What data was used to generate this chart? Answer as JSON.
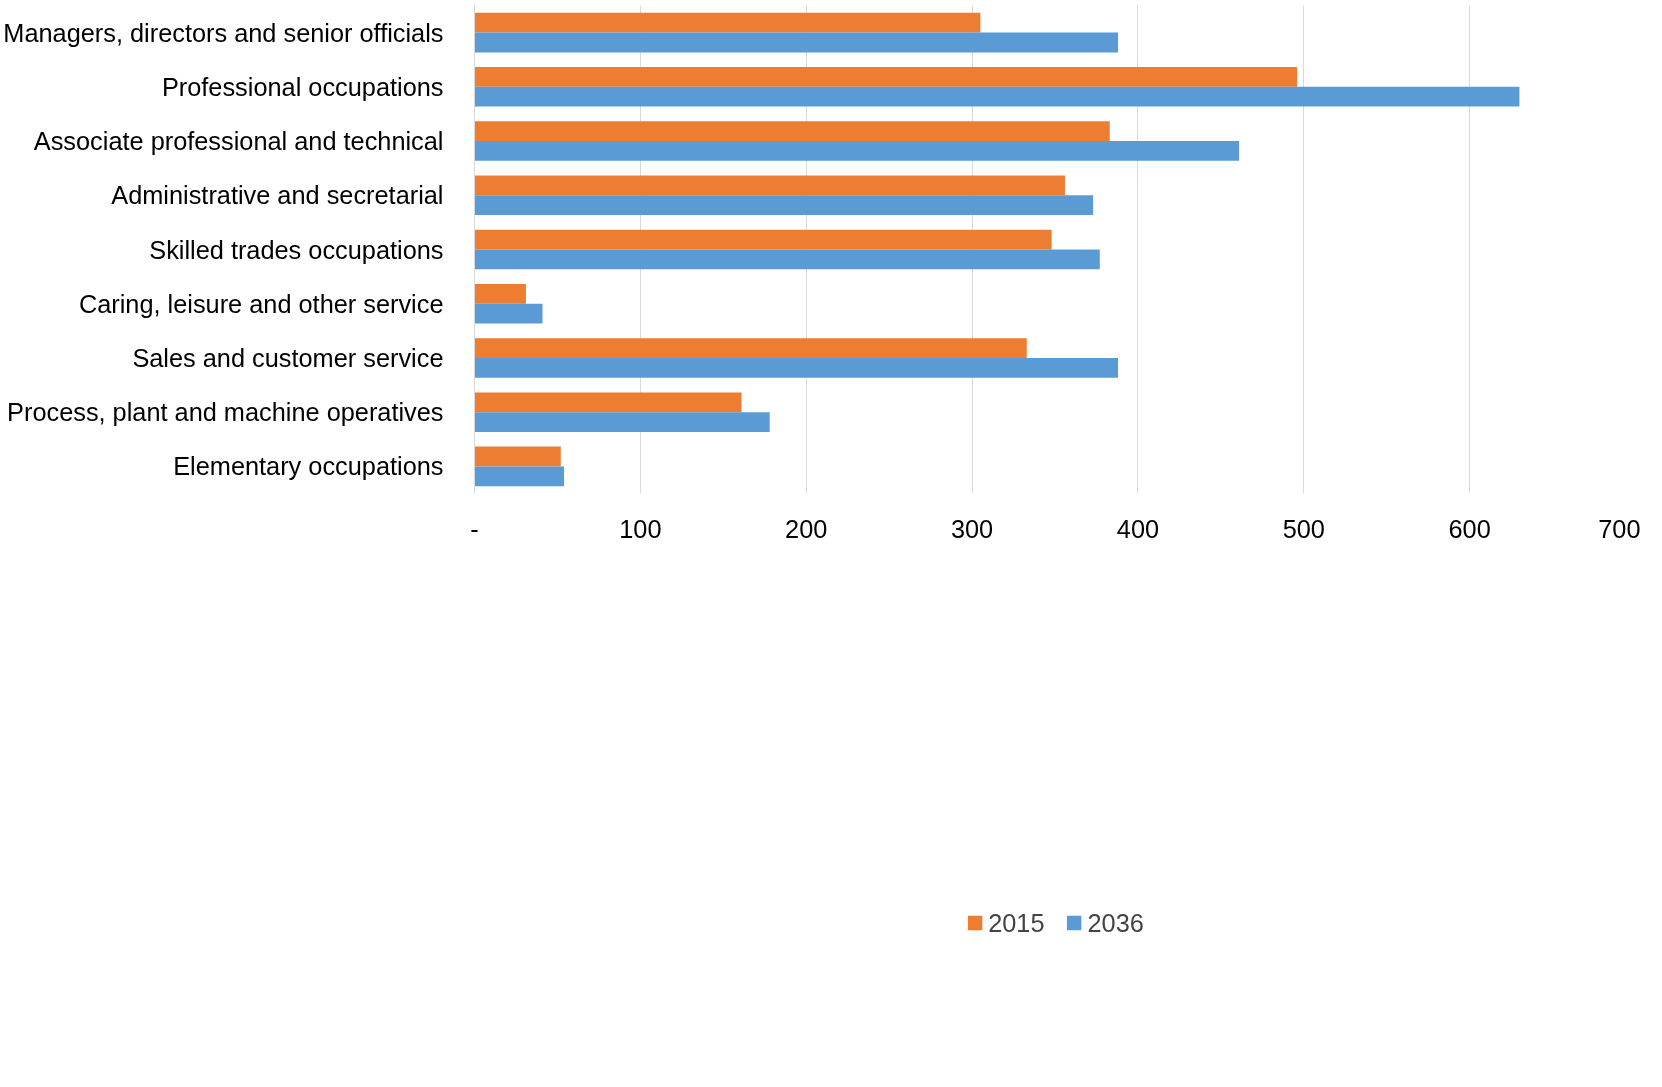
{
  "chart_data": {
    "type": "bar",
    "orientation": "horizontal",
    "categories": [
      "Managers, directors and senior officials",
      "Professional occupations",
      "Associate professional and technical",
      "Administrative and secretarial",
      "Skilled trades occupations",
      "Caring, leisure and other service",
      "Sales and customer service",
      "Process, plant and machine operatives",
      "Elementary occupations"
    ],
    "series": [
      {
        "name": "2015",
        "color": "#ed7d31",
        "values": [
          305,
          496,
          383,
          356,
          348,
          31,
          333,
          161,
          52
        ]
      },
      {
        "name": "2036",
        "color": "#5b9bd5",
        "values": [
          388,
          630,
          461,
          373,
          377,
          41,
          388,
          178,
          54
        ]
      }
    ],
    "xlim": [
      0,
      700
    ],
    "xticks": [
      {
        "value": 0,
        "label": "-"
      },
      100,
      200,
      300,
      400,
      500,
      600,
      700
    ],
    "grid": "x",
    "legend": "bottom"
  }
}
